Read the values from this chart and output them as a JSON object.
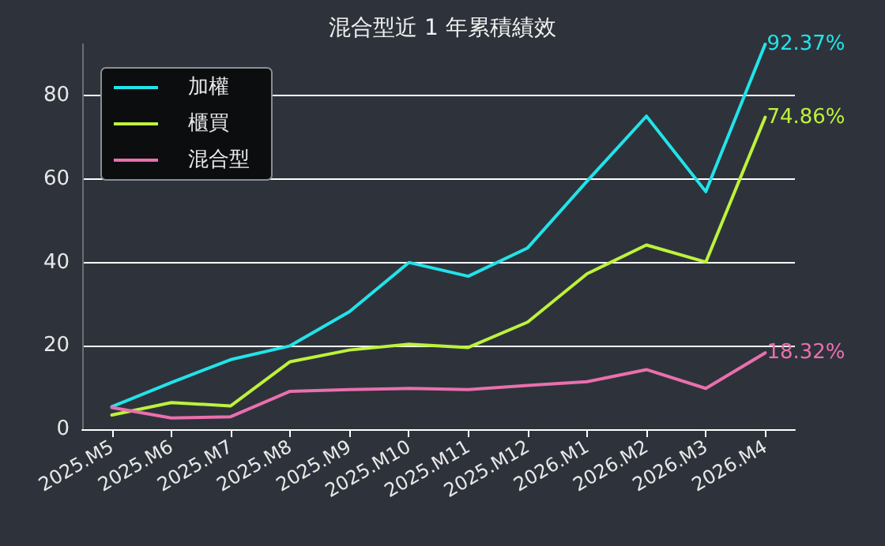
{
  "chart_data": {
    "type": "line",
    "title": "混合型近 1 年累積績效",
    "categories": [
      "2025.M5",
      "2025.M6",
      "2025.M7",
      "2025.M8",
      "2025.M9",
      "2025.M10",
      "2025.M11",
      "2025.M12",
      "2026.M1",
      "2026.M2",
      "2026.M3",
      "2026.M4"
    ],
    "series": [
      {
        "name": "加權",
        "color": "#22e3ea",
        "values": [
          5.4,
          11.2,
          16.7,
          20.0,
          28.2,
          40.0,
          36.7,
          43.5,
          59.5,
          75.1,
          57.0,
          92.37
        ],
        "value_labels": [
          null,
          null,
          null,
          null,
          null,
          null,
          null,
          null,
          null,
          null,
          null,
          "92.37%"
        ]
      },
      {
        "name": "櫃買",
        "color": "#bdf23c",
        "values": [
          3.4,
          6.4,
          5.6,
          16.2,
          19.0,
          20.4,
          19.6,
          25.7,
          37.3,
          44.2,
          40.1,
          74.86
        ],
        "value_labels": [
          null,
          null,
          null,
          null,
          null,
          null,
          null,
          null,
          null,
          null,
          null,
          "74.86%"
        ]
      },
      {
        "name": "混合型",
        "color": "#ea6fae",
        "values": [
          5.2,
          2.7,
          3.0,
          9.1,
          9.5,
          9.8,
          9.5,
          10.5,
          11.4,
          14.3,
          9.8,
          18.32
        ],
        "value_labels": [
          null,
          null,
          null,
          null,
          null,
          null,
          null,
          null,
          null,
          null,
          null,
          "18.32%"
        ]
      }
    ],
    "ylim": [
      0,
      92.37
    ],
    "yticks": [
      0,
      20,
      40,
      60,
      80
    ],
    "grid": "y",
    "legend": "top left",
    "marker": "none",
    "line_style": "solid"
  }
}
